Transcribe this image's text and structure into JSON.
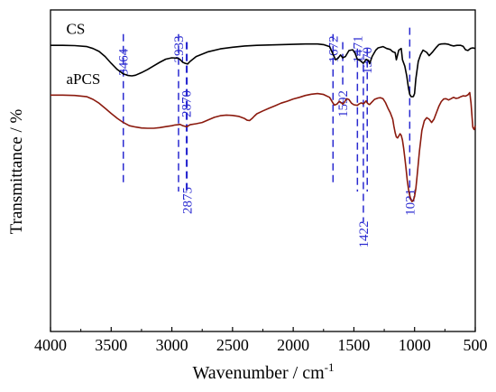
{
  "chart_data": {
    "type": "line",
    "title": "",
    "xlabel": "Wavenumber / cm",
    "xlabel_superscript": "-1",
    "ylabel": "Transmittance / %",
    "xlim": [
      4000,
      500
    ],
    "x_reversed": true,
    "y_ticks_shown": false,
    "grid": false,
    "x_ticks": [
      "4000",
      "3500",
      "3000",
      "2500",
      "2000",
      "1500",
      "1000",
      "500"
    ],
    "series": [
      {
        "name": "CS",
        "color": "#000000",
        "x": [
          4000,
          3900,
          3800,
          3700,
          3650,
          3600,
          3550,
          3500,
          3450,
          3400,
          3360,
          3330,
          3300,
          3250,
          3200,
          3150,
          3100,
          3050,
          3000,
          2950,
          2933,
          2910,
          2890,
          2870,
          2850,
          2800,
          2700,
          2600,
          2500,
          2400,
          2300,
          2200,
          2100,
          2000,
          1900,
          1800,
          1750,
          1700,
          1672,
          1650,
          1630,
          1610,
          1592,
          1570,
          1540,
          1510,
          1490,
          1471,
          1450,
          1422,
          1400,
          1380,
          1370,
          1350,
          1320,
          1300,
          1260,
          1230,
          1200,
          1180,
          1160,
          1150,
          1130,
          1110,
          1100,
          1080,
          1065,
          1050,
          1040,
          1030,
          1021,
          1010,
          1000,
          990,
          970,
          950,
          930,
          900,
          880,
          850,
          820,
          800,
          780,
          750,
          720,
          700,
          680,
          650,
          620,
          600,
          580,
          560,
          540,
          520,
          500
        ],
        "y": [
          89.0,
          89.0,
          88.9,
          88.6,
          88.0,
          87.1,
          85.5,
          83.4,
          81.5,
          80.1,
          79.6,
          79.5,
          79.7,
          80.5,
          81.5,
          82.6,
          83.7,
          84.7,
          85.1,
          85.0,
          84.6,
          83.7,
          83.4,
          83.2,
          84.0,
          85.5,
          87.0,
          87.9,
          88.4,
          88.8,
          89.0,
          89.1,
          89.2,
          89.3,
          89.4,
          89.4,
          89.2,
          88.6,
          86.2,
          84.5,
          85.0,
          86.0,
          85.1,
          85.5,
          87.4,
          87.6,
          86.5,
          84.6,
          84.3,
          83.4,
          84.6,
          84.3,
          83.3,
          85.5,
          87.5,
          88.2,
          88.6,
          88.0,
          87.7,
          87.0,
          86.7,
          84.5,
          87.5,
          88.0,
          84.5,
          82.5,
          79.5,
          75.6,
          73.8,
          73.1,
          73.0,
          73.1,
          74.0,
          78.5,
          84.0,
          86.1,
          87.5,
          86.8,
          85.8,
          87.0,
          88.4,
          89.2,
          89.4,
          89.5,
          89.3,
          89.0,
          88.8,
          89.0,
          89.0,
          88.7,
          87.6,
          87.4,
          88.0,
          88.2,
          88.0
        ]
      },
      {
        "name": "aPCS",
        "color": "#8b1a0e",
        "x": [
          4000,
          3900,
          3800,
          3700,
          3650,
          3600,
          3550,
          3500,
          3450,
          3400,
          3350,
          3300,
          3250,
          3200,
          3150,
          3100,
          3050,
          3000,
          2975,
          2950,
          2933,
          2910,
          2890,
          2875,
          2850,
          2800,
          2750,
          2700,
          2650,
          2600,
          2550,
          2500,
          2450,
          2400,
          2380,
          2360,
          2340,
          2320,
          2300,
          2250,
          2200,
          2150,
          2100,
          2050,
          2000,
          1950,
          1900,
          1850,
          1800,
          1750,
          1700,
          1672,
          1660,
          1640,
          1620,
          1600,
          1592,
          1580,
          1560,
          1540,
          1520,
          1500,
          1480,
          1471,
          1460,
          1440,
          1422,
          1410,
          1400,
          1390,
          1380,
          1370,
          1350,
          1330,
          1300,
          1280,
          1260,
          1240,
          1220,
          1200,
          1180,
          1170,
          1160,
          1150,
          1140,
          1130,
          1120,
          1110,
          1100,
          1090,
          1080,
          1070,
          1060,
          1050,
          1040,
          1030,
          1021,
          1010,
          1000,
          990,
          980,
          960,
          940,
          920,
          900,
          880,
          860,
          840,
          820,
          800,
          780,
          760,
          740,
          720,
          700,
          680,
          660,
          640,
          620,
          600,
          580,
          560,
          545,
          535,
          520,
          510,
          500
        ],
        "y": [
          73.5,
          73.5,
          73.4,
          73.0,
          72.2,
          71.0,
          69.4,
          67.8,
          66.3,
          65.0,
          64.0,
          63.6,
          63.3,
          63.2,
          63.2,
          63.4,
          63.7,
          64.0,
          64.2,
          64.3,
          64.4,
          64.0,
          63.8,
          63.7,
          64.3,
          64.6,
          65.0,
          65.8,
          66.6,
          67.1,
          67.3,
          67.2,
          66.9,
          66.2,
          65.7,
          65.6,
          66.2,
          67.0,
          67.7,
          68.6,
          69.4,
          70.2,
          71.0,
          71.6,
          72.3,
          72.8,
          73.4,
          73.8,
          74.0,
          73.7,
          72.8,
          71.0,
          70.4,
          70.7,
          71.6,
          71.0,
          70.7,
          71.2,
          72.4,
          72.1,
          71.0,
          70.5,
          70.4,
          70.3,
          70.7,
          71.1,
          70.8,
          71.2,
          71.7,
          71.1,
          70.7,
          70.6,
          71.4,
          72.2,
          72.6,
          72.7,
          72.4,
          71.2,
          69.5,
          68.0,
          66.0,
          63.8,
          61.8,
          60.5,
          60.2,
          60.8,
          61.5,
          61.0,
          59.5,
          57.0,
          54.0,
          50.5,
          47.0,
          44.2,
          42.3,
          40.9,
          40.4,
          40.8,
          42.0,
          44.4,
          48.0,
          56.0,
          62.5,
          65.5,
          66.5,
          66.0,
          65.0,
          66.0,
          68.0,
          70.0,
          71.5,
          72.3,
          72.4,
          72.0,
          72.4,
          72.8,
          72.5,
          72.6,
          73.0,
          73.3,
          73.2,
          73.6,
          74.3,
          71.0,
          63.5,
          62.8,
          64.0
        ]
      }
    ],
    "annotations": [
      {
        "text": "3464",
        "x": 3400,
        "line_top": 92.5,
        "line_bottom": 45.8,
        "label_y": 88.0,
        "label_above_line": true
      },
      {
        "text": "2933",
        "x": 2945,
        "line_top": 92.5,
        "line_bottom": 43.5,
        "label_y": 92.0,
        "label_above_line": true
      },
      {
        "text": "2870",
        "x": 2880,
        "line_top": 90.0,
        "line_bottom": 43.5,
        "label_y": 75.0,
        "label_above_line": true
      },
      {
        "text": "2875",
        "x": 2875,
        "line_top": 90.0,
        "line_bottom": 43.5,
        "label_y": 36.5,
        "label_above_line": false
      },
      {
        "text": "1672",
        "x": 1672,
        "line_top": 92.5,
        "line_bottom": 45.8,
        "label_y": 92.0,
        "label_above_line": true
      },
      {
        "text": "1592",
        "x": 1592,
        "line_top": 90.0,
        "line_bottom": 75.5,
        "label_y": 75.0,
        "label_above_line": true
      },
      {
        "text": "1471",
        "x": 1471,
        "line_top": 88.0,
        "line_bottom": 43.5,
        "label_y": 92.0,
        "label_above_line": true
      },
      {
        "text": "1370",
        "x": 1390,
        "line_top": 88.0,
        "line_bottom": 43.5,
        "label_y": 88.5,
        "label_above_line": true
      },
      {
        "text": "1422",
        "x": 1422,
        "line_top": 83.0,
        "line_bottom": 34.0,
        "label_y": 26.0,
        "label_above_line": false
      },
      {
        "text": "1021",
        "x": 1040,
        "line_top": 94.5,
        "line_bottom": 40.0,
        "label_y": 36.0,
        "label_above_line": false
      }
    ],
    "text_labels": [
      {
        "text": "CS",
        "x": 3870,
        "y": 92.5
      },
      {
        "text": "aPCS",
        "x": 3870,
        "y": 77.0
      }
    ]
  }
}
